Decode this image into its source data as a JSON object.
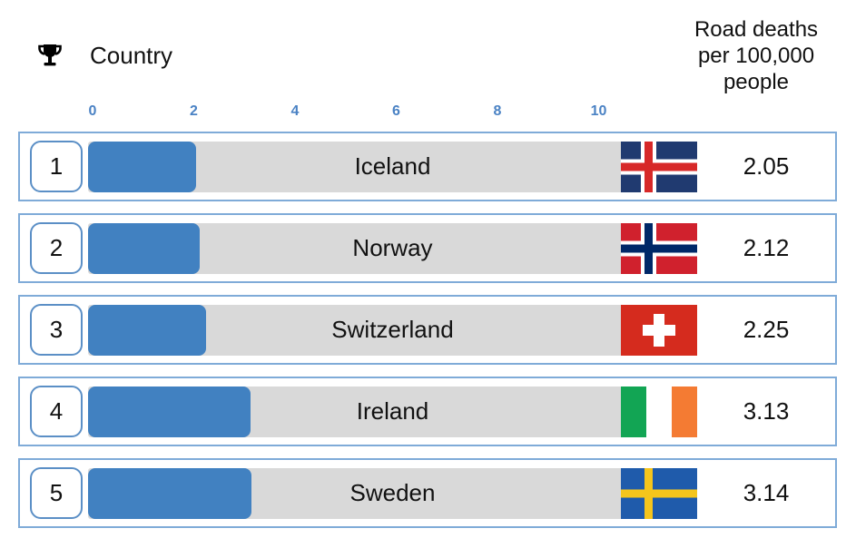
{
  "header": {
    "rank_column_icon": "trophy-icon",
    "country_label": "Country",
    "value_label_lines": [
      "Road deaths",
      "per 100,000",
      "people"
    ]
  },
  "chart_data": {
    "type": "bar",
    "orientation": "horizontal",
    "title": "Road deaths per 100,000 people",
    "xlabel": "Road deaths per 100,000 people",
    "ylabel": "Country",
    "xlim": [
      0,
      12
    ],
    "axis_ticks": [
      0,
      2,
      4,
      6,
      8,
      10
    ],
    "grid": false,
    "legend": false,
    "categories": [
      "Iceland",
      "Norway",
      "Switzerland",
      "Ireland",
      "Sweden"
    ],
    "values": [
      2.05,
      2.12,
      2.25,
      3.13,
      3.14
    ],
    "rows": [
      {
        "rank": "1",
        "country": "Iceland",
        "value": 2.05,
        "value_text": "2.05",
        "flag": "iceland"
      },
      {
        "rank": "2",
        "country": "Norway",
        "value": 2.12,
        "value_text": "2.12",
        "flag": "norway"
      },
      {
        "rank": "3",
        "country": "Switzerland",
        "value": 2.25,
        "value_text": "2.25",
        "flag": "switzerland"
      },
      {
        "rank": "4",
        "country": "Ireland",
        "value": 3.13,
        "value_text": "3.13",
        "flag": "ireland"
      },
      {
        "rank": "5",
        "country": "Sweden",
        "value": 3.14,
        "value_text": "3.14",
        "flag": "sweden"
      }
    ]
  },
  "colors": {
    "bar": "#4181c1",
    "track": "#d9d9d9",
    "row_border": "#7fabd8",
    "rank_border": "#5b8fc6",
    "tick_text": "#4a82c4",
    "text": "#111111",
    "flag_iceland_blue": "#203a70",
    "flag_iceland_red": "#d72828",
    "flag_norway_red": "#d0212d",
    "flag_norway_blue": "#002868",
    "flag_swiss_red": "#d52b1e",
    "flag_ireland_green": "#12a554",
    "flag_ireland_orange": "#f47b33",
    "flag_sweden_blue": "#1f5bab",
    "flag_sweden_yellow": "#f5c51c"
  }
}
